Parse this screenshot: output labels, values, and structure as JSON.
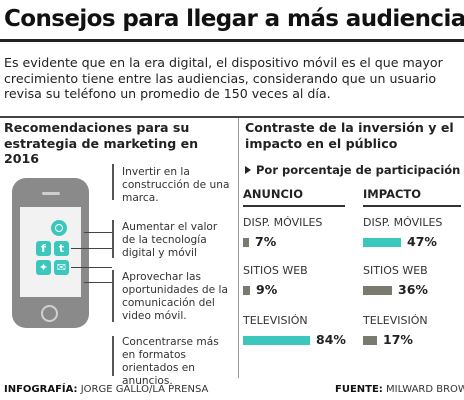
{
  "title": "Consejos para llegar a más audiencias",
  "intro": "Es evidente que en la era digital, el dispositivo móvil es el que mayor crecimiento tiene entre las audiencias, considerando que un usuario revisa su teléfono un promedio de 150 veces al día.",
  "left": {
    "heading": "Recomendaciones para su estrategia de marketing en 2016",
    "bullets": [
      "Invertir en la construcción de una marca.",
      "Aumentar el valor de la tecnología digital y móvil",
      "Aprovechar las oportunidades de la comunicación del video móvil.",
      "Concentrarse más en formatos orientados en anuncios."
    ],
    "icons": [
      "whatsapp-icon",
      "facebook-icon",
      "twitter-icon",
      "message-icon"
    ]
  },
  "right": {
    "heading": "Contraste de la inversión y el impacto en el público",
    "subheading": "Por porcentaje de participación",
    "col_anuncio": "ANUNCIO",
    "col_impacto": "IMPACTO"
  },
  "chart_data": {
    "type": "bar",
    "categories": [
      "DISP. MÓVILES",
      "SITIOS WEB",
      "TELEVISIÓN"
    ],
    "series": [
      {
        "name": "ANUNCIO",
        "values": [
          7,
          9,
          84
        ],
        "labels": [
          "7%",
          "9%",
          "84%"
        ]
      },
      {
        "name": "IMPACTO",
        "values": [
          47,
          36,
          17
        ],
        "labels": [
          "47%",
          "36%",
          "17%"
        ]
      }
    ],
    "highlight_color": "#3cc7bd",
    "base_color": "#7a7a6e"
  },
  "footer": {
    "credit_label": "INFOGRAFÍA:",
    "credit_value": "JORGE GALLO/LA PRENSA",
    "source_label": "FUENTE:",
    "source_value": "MILWARD BROWN"
  }
}
